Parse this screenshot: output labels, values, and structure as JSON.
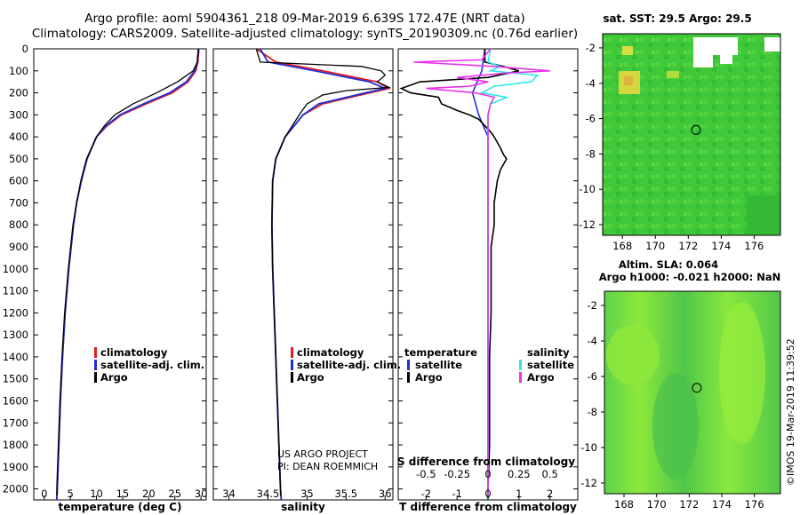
{
  "header": {
    "line1": "Argo profile: aoml 5904361_218 09-Mar-2019 6.639S 172.47E (NRT data)",
    "line2": "Climatology: CARS2009. Satellite-adjusted climatology: synTS_20190309.nc (0.76d earlier)"
  },
  "credits": {
    "project": "US ARGO PROJECT",
    "pi": "PI: DEAN ROEMMICH",
    "imos": "©IMOS 19-Mar-2019 11:39:52"
  },
  "colors": {
    "climatology": "#e41a1c",
    "satellite": "#1f2fd6",
    "argo": "#000000",
    "salinity_sat": "#2ee6e6",
    "salinity_argo": "#e832e8",
    "map_green": "#3cc83c"
  },
  "chart_data": [
    {
      "type": "line",
      "id": "temperature",
      "xlabel": "temperature (deg C)",
      "ylabel": "",
      "xlim": [
        -2,
        31
      ],
      "ylim": [
        2050,
        0
      ],
      "xticks": [
        0,
        5,
        10,
        15,
        20,
        25,
        30
      ],
      "yticks": [
        0,
        100,
        200,
        300,
        400,
        500,
        600,
        700,
        800,
        900,
        1000,
        1100,
        1200,
        1300,
        1400,
        1500,
        1600,
        1700,
        1800,
        1900,
        2000
      ],
      "legend": [
        "climatology",
        "satellite-adj. clim.",
        "Argo"
      ],
      "series": [
        {
          "name": "climatology",
          "depth": [
            0,
            60,
            100,
            150,
            200,
            250,
            300,
            350,
            400,
            500,
            600,
            700,
            800,
            1000,
            1200,
            1400,
            1600,
            1800,
            2000,
            2050
          ],
          "values": [
            29.6,
            29.4,
            29.0,
            27.5,
            24.5,
            19.5,
            14.8,
            12.0,
            10.0,
            8.2,
            7.1,
            6.2,
            5.6,
            4.7,
            4.0,
            3.5,
            3.1,
            2.8,
            2.5,
            2.4
          ]
        },
        {
          "name": "satellite-adj. clim.",
          "depth": [
            0,
            60,
            100,
            150,
            200,
            250,
            300,
            350,
            400,
            500,
            600,
            700,
            800,
            1000,
            1200,
            1400,
            1600,
            1800,
            2000,
            2050
          ],
          "values": [
            29.5,
            29.3,
            28.8,
            27.2,
            24.0,
            19.0,
            14.5,
            11.8,
            10.0,
            8.2,
            7.1,
            6.2,
            5.6,
            4.7,
            4.0,
            3.5,
            3.1,
            2.8,
            2.5,
            2.4
          ]
        },
        {
          "name": "Argo",
          "depth": [
            0,
            60,
            100,
            150,
            200,
            250,
            300,
            350,
            400,
            500,
            600,
            700,
            800,
            1000,
            1200,
            1400,
            1600,
            1800,
            2000,
            2030
          ],
          "values": [
            29.5,
            29.3,
            28.5,
            25.5,
            21.5,
            17.0,
            13.5,
            11.5,
            10.0,
            8.1,
            7.0,
            6.2,
            5.5,
            4.6,
            3.9,
            3.4,
            3.0,
            2.7,
            2.4,
            2.4
          ]
        }
      ]
    },
    {
      "type": "line",
      "id": "salinity",
      "xlabel": "salinity",
      "ylabel": "",
      "xlim": [
        33.8,
        36.1
      ],
      "ylim": [
        2050,
        0
      ],
      "xticks": [
        34,
        34.5,
        35,
        35.5,
        36
      ],
      "legend": [
        "climatology",
        "satellite-adj. clim.",
        "Argo"
      ],
      "series": [
        {
          "name": "climatology",
          "depth": [
            0,
            60,
            100,
            150,
            180,
            200,
            250,
            300,
            400,
            500,
            600,
            800,
            1000,
            1200,
            1400,
            1600,
            1800,
            2000,
            2050
          ],
          "values": [
            34.35,
            34.6,
            35.2,
            35.9,
            36.05,
            35.8,
            35.2,
            34.95,
            34.72,
            34.6,
            34.56,
            34.55,
            34.56,
            34.58,
            34.6,
            34.62,
            34.64,
            34.66,
            34.67
          ]
        },
        {
          "name": "satellite-adj. clim.",
          "depth": [
            0,
            60,
            100,
            150,
            180,
            200,
            250,
            300,
            400,
            500,
            600,
            800,
            1000,
            1200,
            1400,
            1600,
            1800,
            2000,
            2050
          ],
          "values": [
            34.4,
            34.5,
            35.1,
            35.8,
            36.0,
            35.75,
            35.15,
            34.95,
            34.72,
            34.6,
            34.56,
            34.55,
            34.56,
            34.58,
            34.6,
            34.62,
            34.64,
            34.66,
            34.67
          ]
        },
        {
          "name": "Argo",
          "depth": [
            0,
            60,
            80,
            100,
            120,
            150,
            175,
            190,
            210,
            250,
            300,
            400,
            500,
            600,
            800,
            1000,
            1200,
            1400,
            1600,
            1800,
            2000,
            2030
          ],
          "values": [
            34.35,
            34.4,
            35.7,
            35.95,
            36.0,
            35.9,
            36.05,
            35.5,
            35.2,
            35.0,
            34.9,
            34.72,
            34.6,
            34.56,
            34.55,
            34.56,
            34.58,
            34.6,
            34.62,
            34.64,
            34.66,
            34.66
          ]
        }
      ]
    },
    {
      "type": "line",
      "id": "difference",
      "xlabel": "T difference from climatology",
      "x2label": "S difference from climatology",
      "xlim": [
        -2.9,
        2.9
      ],
      "x2lim": [
        -0.725,
        0.725
      ],
      "ylim": [
        2050,
        0
      ],
      "xticks": [
        -2,
        -1,
        0,
        1,
        2
      ],
      "x2ticks": [
        -0.5,
        -0.25,
        0,
        0.25,
        0.5
      ],
      "x2ticklabels": [
        "-0.5",
        "-0.25",
        "0",
        "0.25",
        "0.5"
      ],
      "legend": {
        "temperature": [
          "satellite",
          "Argo"
        ],
        "salinity": [
          "satellite",
          "Argo"
        ]
      },
      "legend_titles": {
        "temperature": "temperature",
        "salinity": "salinity"
      },
      "series": [
        {
          "name": "temperature satellite",
          "depth": [
            0,
            100,
            200,
            300,
            400,
            500,
            600,
            800,
            1000,
            1400,
            1800,
            2050
          ],
          "values": [
            -0.1,
            -0.2,
            -0.5,
            -0.3,
            0,
            0,
            0,
            0,
            0,
            0,
            0,
            0
          ]
        },
        {
          "name": "temperature Argo",
          "depth": [
            0,
            60,
            80,
            100,
            130,
            150,
            180,
            200,
            220,
            250,
            280,
            300,
            320,
            350,
            380,
            400,
            450,
            480,
            500,
            550,
            600,
            700,
            800,
            900,
            1000,
            1200,
            1400,
            1600,
            1800,
            2000,
            2030
          ],
          "values": [
            -0.1,
            -0.1,
            0.5,
            1.0,
            0.0,
            -2.2,
            -2.8,
            -2.5,
            -1.6,
            -1.5,
            -1.0,
            -0.6,
            -0.3,
            -0.1,
            0.1,
            0.2,
            0.4,
            0.5,
            0.6,
            0.4,
            0.3,
            0.2,
            0.2,
            0.1,
            0.1,
            0.1,
            0.05,
            0.05,
            0.05,
            0.0,
            0.0
          ]
        },
        {
          "name": "salinity satellite",
          "depth": [
            0,
            60,
            80,
            100,
            120,
            150,
            170,
            200,
            220,
            250,
            300,
            400,
            500,
            600,
            800,
            1000,
            1400,
            1800,
            2050
          ],
          "values": [
            0.02,
            0.0,
            0.1,
            0.02,
            0.4,
            0.35,
            0.05,
            -0.05,
            0.15,
            0.02,
            0.0,
            0.0,
            0.0,
            0.0,
            0.0,
            0.0,
            0.0,
            0.0,
            0.0
          ]
        },
        {
          "name": "salinity Argo",
          "depth": [
            0,
            50,
            60,
            80,
            100,
            110,
            130,
            150,
            170,
            180,
            200,
            220,
            250,
            300,
            400,
            500,
            600,
            800,
            1000,
            1400,
            1800,
            2030
          ],
          "values": [
            0.02,
            -0.05,
            -0.6,
            0.05,
            0.5,
            0.15,
            -0.25,
            0.0,
            -0.15,
            -0.5,
            -0.1,
            0.05,
            0.02,
            0.0,
            0.0,
            0.0,
            0.0,
            0.0,
            0.0,
            0.0,
            0.0,
            0.0
          ]
        }
      ]
    },
    {
      "type": "heatmap",
      "id": "sst_map",
      "title": "sat. SST: 29.5 Argo: 29.5",
      "xlim": [
        166.8,
        177.6
      ],
      "ylim": [
        -12.6,
        -1.2
      ],
      "xticks": [
        168,
        170,
        172,
        174,
        176
      ],
      "yticks": [
        -2,
        -4,
        -6,
        -8,
        -10,
        -12
      ],
      "marker": {
        "lon": 172.47,
        "lat": -6.639
      }
    },
    {
      "type": "heatmap",
      "id": "sla_map",
      "title": "Altim. SLA: 0.064",
      "subtitle": "Argo h1000: -0.021 h2000: NaN",
      "xlim": [
        166.8,
        177.6
      ],
      "ylim": [
        -12.6,
        -1.2
      ],
      "xticks": [
        168,
        170,
        172,
        174,
        176
      ],
      "yticks": [
        -2,
        -4,
        -6,
        -8,
        -10,
        -12
      ],
      "marker": {
        "lon": 172.47,
        "lat": -6.639
      }
    }
  ]
}
